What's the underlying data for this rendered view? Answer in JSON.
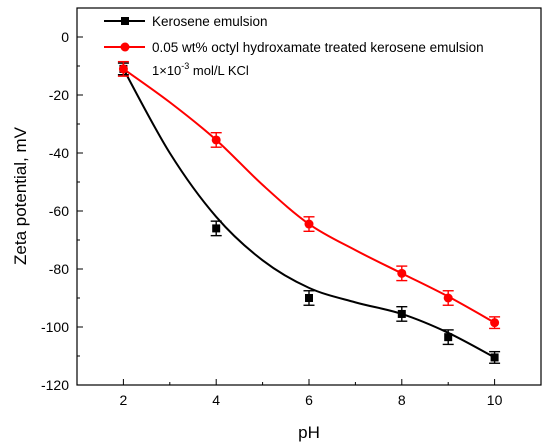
{
  "chart_data": {
    "type": "line",
    "title": "",
    "xlabel": "pH",
    "ylabel": "Zeta potential, mV",
    "xlim": [
      1,
      11
    ],
    "ylim": [
      -120,
      10
    ],
    "xticks": [
      2,
      4,
      6,
      8,
      10
    ],
    "yticks": [
      0,
      -20,
      -40,
      -60,
      -80,
      -100,
      -120
    ],
    "xtick_labels": [
      "2",
      "4",
      "6",
      "8",
      "10"
    ],
    "ytick_labels": [
      "0",
      "-20",
      "-40",
      "-60",
      "-80",
      "-100",
      "-120"
    ],
    "grid": false,
    "legend_position": "top-left",
    "annotation": {
      "prefix": "1×10",
      "superscript": "-3",
      "suffix": " mol/L KCl"
    },
    "series": [
      {
        "name": "Kerosene emulsion",
        "color": "#000000",
        "marker": "square",
        "x": [
          2,
          4,
          6,
          8,
          9,
          10
        ],
        "y": [
          -11,
          -66,
          -90,
          -95.5,
          -103.5,
          -110.5
        ],
        "error": [
          2,
          2.5,
          2.5,
          2.5,
          2.5,
          2
        ],
        "fit_curve": [
          [
            2,
            -11
          ],
          [
            3,
            -40
          ],
          [
            4,
            -62
          ],
          [
            5,
            -77
          ],
          [
            6,
            -86.5
          ],
          [
            7,
            -91.5
          ],
          [
            8,
            -95.5
          ],
          [
            9,
            -102
          ],
          [
            10,
            -110.5
          ]
        ]
      },
      {
        "name": "0.05 wt% octyl hydroxamate treated kerosene emulsion",
        "color": "#ff0000",
        "marker": "circle",
        "x": [
          2,
          4,
          6,
          8,
          9,
          10
        ],
        "y": [
          -11,
          -35.5,
          -64.5,
          -81.5,
          -90,
          -98.5
        ],
        "error": [
          2.5,
          2.5,
          2.5,
          2.5,
          2.5,
          2
        ],
        "fit_curve": [
          [
            2,
            -11
          ],
          [
            3,
            -22.5
          ],
          [
            4,
            -35.5
          ],
          [
            5,
            -51
          ],
          [
            6,
            -64.5
          ],
          [
            7,
            -73.5
          ],
          [
            8,
            -81.5
          ],
          [
            9,
            -89.5
          ],
          [
            10,
            -98.5
          ]
        ]
      }
    ]
  }
}
